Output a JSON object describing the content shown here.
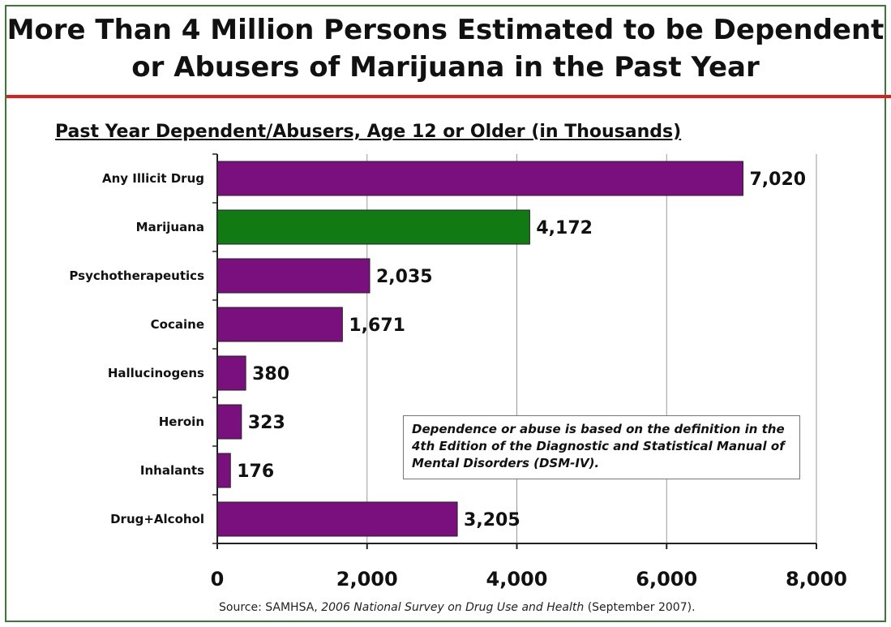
{
  "title_line1": "More Than 4 Million Persons Estimated to be Dependent",
  "title_line2": "or Abusers of Marijuana in the Past Year",
  "colors": {
    "bar_default": "#7a0f7e",
    "bar_highlight": "#117a13",
    "rule": "#e01b1b",
    "frame": "#3a7a34"
  },
  "chart_data": {
    "type": "bar",
    "orientation": "horizontal",
    "title": "Past Year Dependent/Abusers, Age 12 or Older (in Thousands)",
    "categories": [
      "Any Illicit Drug",
      "Marijuana",
      "Psychotherapeutics",
      "Cocaine",
      "Hallucinogens",
      "Heroin",
      "Inhalants",
      "Drug+Alcohol"
    ],
    "values": [
      7020,
      4172,
      2035,
      1671,
      380,
      323,
      176,
      3205
    ],
    "value_labels": [
      "7,020",
      "4,172",
      "2,035",
      "1,671",
      "380",
      "323",
      "176",
      "3,205"
    ],
    "highlight": "Marijuana",
    "xlim": [
      0,
      8000
    ],
    "xticks": [
      0,
      2000,
      4000,
      6000,
      8000
    ],
    "xtick_labels": [
      "0",
      "2,000",
      "4,000",
      "6,000",
      "8,000"
    ],
    "grid": true
  },
  "note": "Dependence or abuse is based on the definition in the 4th Edition of the Diagnostic and Statistical Manual of Mental Disorders (DSM-IV).",
  "source": {
    "prefix": "Source:  SAMHSA, ",
    "italic": "2006 National Survey on Drug Use and Health",
    "suffix": " (September 2007)."
  }
}
